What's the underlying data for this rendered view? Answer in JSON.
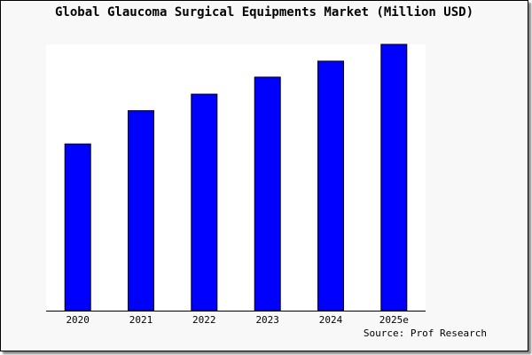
{
  "chart_data": {
    "type": "bar",
    "title": "Global Glaucoma Surgical Equipments Market (Million USD)",
    "categories": [
      "2020",
      "2021",
      "2022",
      "2023",
      "2024",
      "2025e"
    ],
    "values": [
      62.6,
      75.1,
      81.3,
      87.7,
      93.7,
      100
    ],
    "value_note_scale": "relative index, 2025e = 100 (no y-axis printed)",
    "ylim": [
      0,
      100
    ],
    "grid": false,
    "bar_color": "#0000ff",
    "plot_background": "#ffffff",
    "source": "Source: Prof Research"
  }
}
